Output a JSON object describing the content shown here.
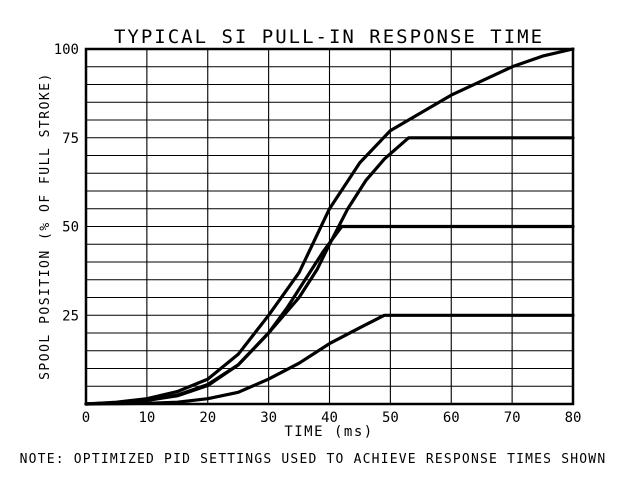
{
  "chart_data": {
    "type": "line",
    "title": "TYPICAL SI PULL-IN RESPONSE TIME",
    "xlabel": "TIME (ms)",
    "ylabel": "SPOOL POSITION (% OF FULL STROKE)",
    "note": "NOTE: OPTIMIZED PID SETTINGS USED TO ACHIEVE RESPONSE TIMES SHOWN",
    "xlim": [
      0,
      80
    ],
    "ylim": [
      0,
      100
    ],
    "x_ticks": [
      0,
      10,
      20,
      30,
      40,
      50,
      60,
      70,
      80
    ],
    "y_ticks": [
      25,
      50,
      75,
      100
    ],
    "grid": true,
    "colors": {
      "line": "#000000",
      "grid": "#000000",
      "background": "#ffffff"
    },
    "series": [
      {
        "points": [
          [
            0,
            0
          ],
          [
            5,
            0.3
          ],
          [
            10,
            1
          ],
          [
            15,
            2.5
          ],
          [
            20,
            5.5
          ],
          [
            25,
            11
          ],
          [
            30,
            20
          ],
          [
            33,
            27
          ],
          [
            36,
            35
          ],
          [
            39,
            43
          ],
          [
            42,
            50
          ],
          [
            43.5,
            50
          ],
          [
            50,
            50
          ],
          [
            60,
            50
          ],
          [
            70,
            50
          ],
          [
            80,
            50
          ]
        ]
      },
      {
        "points": [
          [
            0,
            0
          ],
          [
            5,
            0.3
          ],
          [
            10,
            1
          ],
          [
            15,
            2.3
          ],
          [
            20,
            5.2
          ],
          [
            25,
            11
          ],
          [
            30,
            20
          ],
          [
            35,
            30
          ],
          [
            38,
            38
          ],
          [
            40,
            45
          ],
          [
            43,
            55
          ],
          [
            46,
            63
          ],
          [
            49,
            69
          ],
          [
            53,
            75
          ],
          [
            60,
            75
          ],
          [
            70,
            75
          ],
          [
            80,
            75
          ]
        ]
      },
      {
        "points": [
          [
            0,
            0
          ],
          [
            5,
            0.5
          ],
          [
            10,
            1.5
          ],
          [
            15,
            3.5
          ],
          [
            20,
            7
          ],
          [
            25,
            14
          ],
          [
            30,
            25
          ],
          [
            35,
            37
          ],
          [
            40,
            55
          ],
          [
            45,
            68
          ],
          [
            50,
            77
          ],
          [
            55,
            82
          ],
          [
            60,
            87
          ],
          [
            65,
            91
          ],
          [
            70,
            95
          ],
          [
            75,
            98
          ],
          [
            80,
            100
          ]
        ]
      },
      {
        "points": [
          [
            0,
            0
          ],
          [
            10,
            0.2
          ],
          [
            15,
            0.5
          ],
          [
            20,
            1.5
          ],
          [
            25,
            3.3
          ],
          [
            30,
            7
          ],
          [
            35,
            11.5
          ],
          [
            40,
            17
          ],
          [
            45,
            21.5
          ],
          [
            49,
            25
          ],
          [
            60,
            25
          ],
          [
            70,
            25
          ],
          [
            80,
            25
          ]
        ]
      }
    ]
  }
}
